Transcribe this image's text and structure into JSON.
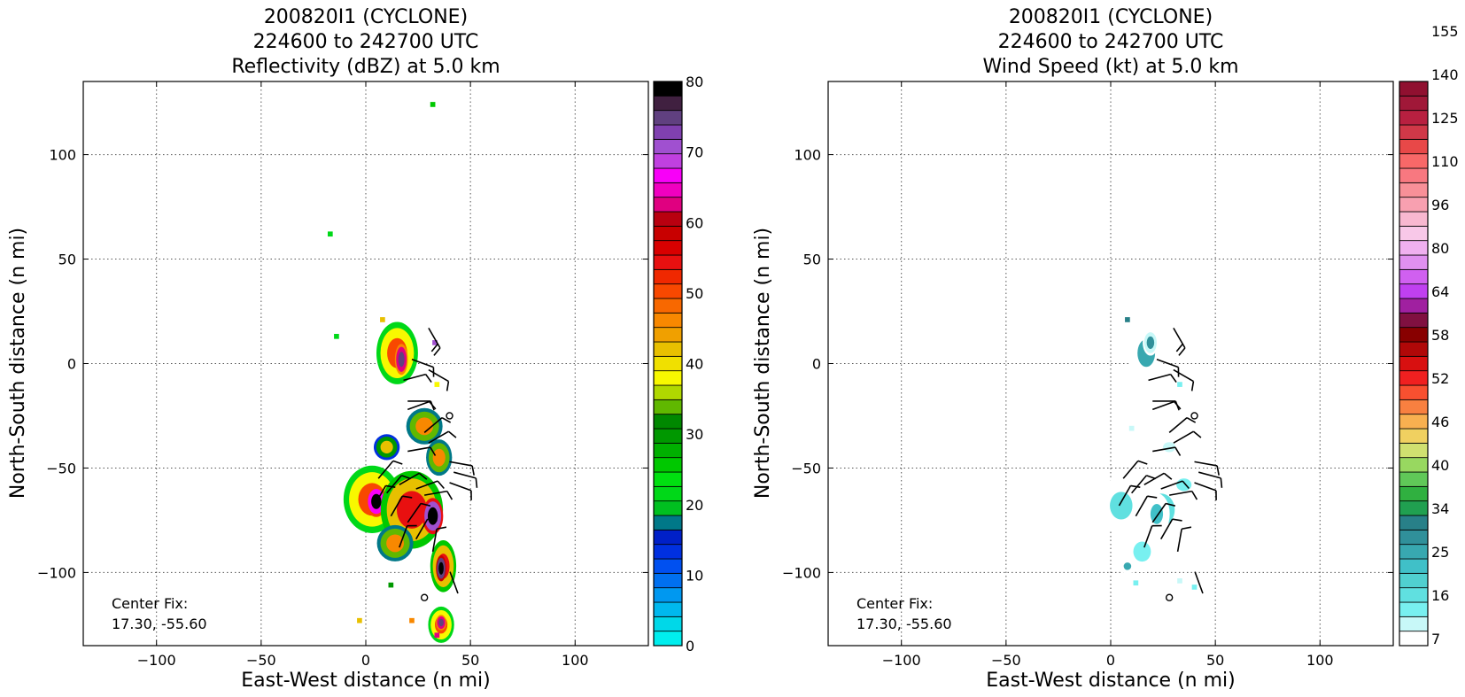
{
  "chart_data": [
    {
      "type": "heatmap",
      "title": "200820I1 (CYCLONE)",
      "subtitle": "224600 to 242700 UTC",
      "variable_label": "Reflectivity (dBZ) at 5.0 km",
      "xlabel": "East-West distance (n mi)",
      "ylabel": "North-South distance (n mi)",
      "xlim": [
        -135,
        135
      ],
      "ylim": [
        -135,
        135
      ],
      "x_ticks": [
        -100,
        -50,
        0,
        50,
        100
      ],
      "y_ticks": [
        -100,
        -50,
        0,
        50,
        100
      ],
      "x_tick_labels": [
        "−100",
        "−50",
        "0",
        "50",
        "100"
      ],
      "y_tick_labels": [
        "−100",
        "−50",
        "0",
        "50",
        "100"
      ],
      "grid": true,
      "center_fix_label": "Center Fix:",
      "center_fix_value": "17.30, -55.60",
      "colorbar": {
        "min": 0,
        "max": 80,
        "tick_values": [
          0,
          10,
          20,
          30,
          40,
          50,
          60,
          70,
          80
        ],
        "tick_labels": [
          "0",
          "10",
          "20",
          "30",
          "40",
          "50",
          "60",
          "70",
          "80"
        ],
        "colors": [
          "#00eeee",
          "#00d8e8",
          "#00b8ee",
          "#0098f0",
          "#0070f0",
          "#0050f0",
          "#0030e0",
          "#0020c8",
          "#007888",
          "#00c020",
          "#00d818",
          "#00e010",
          "#00c800",
          "#00b000",
          "#009800",
          "#008800",
          "#60b800",
          "#b0d800",
          "#f8f800",
          "#f0e000",
          "#e8c000",
          "#f0a000",
          "#f88800",
          "#f86800",
          "#f84800",
          "#f02800",
          "#e81010",
          "#d80000",
          "#c80000",
          "#b80010",
          "#e00080",
          "#f000c0",
          "#f800f8",
          "#c040e0",
          "#a050d0",
          "#8040b0",
          "#604080",
          "#402040",
          "#000000"
        ]
      },
      "blobs": [
        {
          "x": 15,
          "y": 5,
          "w": 16,
          "h": 24,
          "level": 24
        },
        {
          "x": 17,
          "y": 2,
          "w": 5,
          "h": 12,
          "level": 36
        },
        {
          "x": 28,
          "y": -30,
          "w": 14,
          "h": 14,
          "level": 22
        },
        {
          "x": 10,
          "y": -40,
          "w": 10,
          "h": 10,
          "level": 20
        },
        {
          "x": 35,
          "y": -45,
          "w": 10,
          "h": 14,
          "level": 22
        },
        {
          "x": 3,
          "y": -65,
          "w": 22,
          "h": 26,
          "level": 24
        },
        {
          "x": 5,
          "y": -66,
          "w": 8,
          "h": 12,
          "level": 38
        },
        {
          "x": 22,
          "y": -70,
          "w": 24,
          "h": 30,
          "level": 26
        },
        {
          "x": 32,
          "y": -73,
          "w": 8,
          "h": 14,
          "level": 40
        },
        {
          "x": 14,
          "y": -86,
          "w": 14,
          "h": 14,
          "level": 22
        },
        {
          "x": 37,
          "y": -97,
          "w": 10,
          "h": 20,
          "level": 26
        },
        {
          "x": 36,
          "y": -98,
          "w": 4,
          "h": 10,
          "level": 42
        },
        {
          "x": 36,
          "y": -125,
          "w": 10,
          "h": 14,
          "level": 24
        },
        {
          "x": 36,
          "y": -124,
          "w": 4,
          "h": 6,
          "level": 36
        }
      ],
      "points": [
        {
          "x": 32,
          "y": 124,
          "level": 12
        },
        {
          "x": -17,
          "y": 62,
          "level": 10
        },
        {
          "x": -14,
          "y": 13,
          "level": 10
        },
        {
          "x": 8,
          "y": 21,
          "level": 20
        },
        {
          "x": 33,
          "y": 10,
          "level": 34
        },
        {
          "x": 34,
          "y": -10,
          "level": 18
        },
        {
          "x": 12,
          "y": -106,
          "level": 14
        },
        {
          "x": -3,
          "y": -123,
          "level": 20
        },
        {
          "x": 22,
          "y": -123,
          "level": 22
        },
        {
          "x": 34,
          "y": -130,
          "level": 30
        }
      ]
    },
    {
      "type": "heatmap",
      "title": "200820I1 (CYCLONE)",
      "subtitle": "224600 to 242700 UTC",
      "variable_label": "Wind Speed (kt) at 5.0 km",
      "xlabel": "East-West distance (n mi)",
      "ylabel": "North-South distance (n mi)",
      "xlim": [
        -135,
        135
      ],
      "ylim": [
        -135,
        135
      ],
      "x_ticks": [
        -100,
        -50,
        0,
        50,
        100
      ],
      "y_ticks": [
        -100,
        -50,
        0,
        50,
        100
      ],
      "x_tick_labels": [
        "−100",
        "−50",
        "0",
        "50",
        "100"
      ],
      "y_tick_labels": [
        "−100",
        "−50",
        "0",
        "50",
        "100"
      ],
      "grid": true,
      "center_fix_label": "Center Fix:",
      "center_fix_value": "17.30, -55.60",
      "colorbar": {
        "tick_labels": [
          "7",
          "16",
          "25",
          "34",
          "40",
          "46",
          "52",
          "58",
          "64",
          "80",
          "96",
          "110",
          "125",
          "140",
          "155"
        ],
        "tick_every": 3,
        "colors": [
          "#ffffff",
          "#c8f8f8",
          "#78f0f0",
          "#60e0e0",
          "#50d0d0",
          "#40c0c8",
          "#38a8b0",
          "#30909a",
          "#288088",
          "#20a050",
          "#30b040",
          "#60c858",
          "#98d860",
          "#d0e070",
          "#f0d060",
          "#f8b050",
          "#f88040",
          "#f85030",
          "#f02020",
          "#d81010",
          "#b00808",
          "#880000",
          "#801040",
          "#a020a0",
          "#c040f0",
          "#d060f0",
          "#e090f0",
          "#f0b0f0",
          "#f8c8e8",
          "#f8b8d0",
          "#f8a0b0",
          "#f89098",
          "#f87880",
          "#f86868",
          "#e84848",
          "#d03848",
          "#b82040",
          "#a01838",
          "#901030"
        ]
      },
      "blobs": [
        {
          "x": 17,
          "y": 5,
          "w": 14,
          "h": 22,
          "level": 6
        },
        {
          "x": 19,
          "y": 10,
          "w": 6,
          "h": 10,
          "level": 7
        },
        {
          "x": 5,
          "y": -68,
          "w": 18,
          "h": 22,
          "level": 3
        },
        {
          "x": 24,
          "y": -70,
          "w": 22,
          "h": 26,
          "level": 3
        },
        {
          "x": 22,
          "y": -72,
          "w": 10,
          "h": 16,
          "level": 5
        },
        {
          "x": 15,
          "y": -90,
          "w": 14,
          "h": 16,
          "level": 2
        },
        {
          "x": 35,
          "y": -58,
          "w": 12,
          "h": 10,
          "level": 2
        },
        {
          "x": 28,
          "y": -40,
          "w": 10,
          "h": 8,
          "level": 1
        },
        {
          "x": 8,
          "y": -97,
          "w": 6,
          "h": 6,
          "level": 6
        }
      ],
      "points": [
        {
          "x": 8,
          "y": 21,
          "level": 8
        },
        {
          "x": 33,
          "y": -10,
          "level": 2
        },
        {
          "x": 10,
          "y": -31,
          "level": 1
        },
        {
          "x": 12,
          "y": -105,
          "level": 2
        },
        {
          "x": 33,
          "y": -104,
          "level": 1
        },
        {
          "x": 40,
          "y": -107,
          "level": 2
        }
      ]
    }
  ],
  "wind_barbs": [
    {
      "x": 30,
      "y": 17,
      "dir": 150,
      "barbs": 2
    },
    {
      "x": 22,
      "y": 2,
      "dir": 110,
      "barbs": 1
    },
    {
      "x": 30,
      "y": -3,
      "dir": 120,
      "barbs": 1
    },
    {
      "x": 18,
      "y": -8,
      "dir": 75,
      "barbs": 1
    },
    {
      "x": 20,
      "y": -18,
      "dir": 90,
      "barbs": 1
    },
    {
      "x": 20,
      "y": -22,
      "dir": 70,
      "barbs": 1
    },
    {
      "x": 28,
      "y": -33,
      "dir": 50,
      "barbs": 1
    },
    {
      "x": 30,
      "y": -38,
      "dir": 60,
      "barbs": 1
    },
    {
      "x": 20,
      "y": -42,
      "dir": 80,
      "barbs": 1
    },
    {
      "x": 40,
      "y": -47,
      "dir": 100,
      "barbs": 1
    },
    {
      "x": 42,
      "y": -52,
      "dir": 105,
      "barbs": 1
    },
    {
      "x": 40,
      "y": -57,
      "dir": 110,
      "barbs": 1
    },
    {
      "x": 6,
      "y": -55,
      "dir": 40,
      "barbs": 1
    },
    {
      "x": 10,
      "y": -62,
      "dir": 40,
      "barbs": 1
    },
    {
      "x": 16,
      "y": -58,
      "dir": 60,
      "barbs": 1
    },
    {
      "x": 24,
      "y": -60,
      "dir": 70,
      "barbs": 1
    },
    {
      "x": 28,
      "y": -63,
      "dir": 80,
      "barbs": 1
    },
    {
      "x": 4,
      "y": -68,
      "dir": 30,
      "barbs": 1
    },
    {
      "x": 12,
      "y": -73,
      "dir": 30,
      "barbs": 1
    },
    {
      "x": 20,
      "y": -76,
      "dir": 35,
      "barbs": 1
    },
    {
      "x": 24,
      "y": -84,
      "dir": 30,
      "barbs": 1
    },
    {
      "x": 16,
      "y": -88,
      "dir": 20,
      "barbs": 1
    },
    {
      "x": 32,
      "y": -90,
      "dir": 10,
      "barbs": 1
    },
    {
      "x": 44,
      "y": -110,
      "dir": 340,
      "barbs": 0
    }
  ],
  "calm_markers": [
    {
      "x": 40,
      "y": -25
    },
    {
      "x": 28,
      "y": -112
    }
  ]
}
